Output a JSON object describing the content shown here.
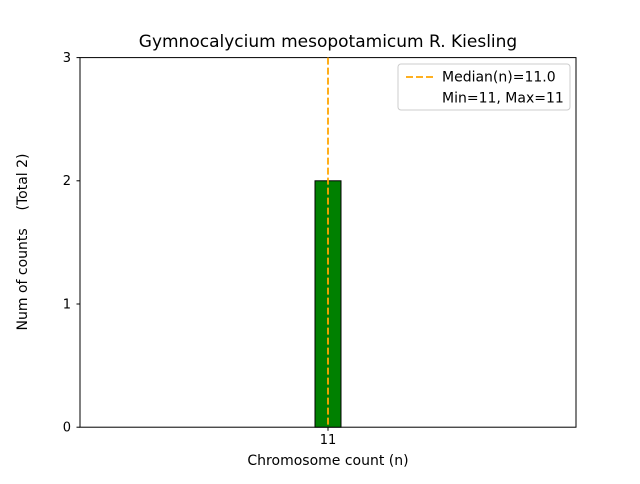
{
  "chart_data": {
    "type": "bar",
    "title": "Gymnocalycium mesopotamicum R. Kiesling",
    "xlabel": "Chromosome count (n)",
    "ylabel": "Num of counts    (Total 2)",
    "categories": [
      "11"
    ],
    "values": [
      2
    ],
    "ylim": [
      0,
      3
    ],
    "yticks": [
      "0",
      "1",
      "2",
      "3"
    ],
    "ytick_values": [
      0,
      1,
      2,
      3
    ],
    "bar_color": "#008000",
    "bar_edge_color": "#000000",
    "median_line": {
      "value": 11,
      "color": "#FFA500",
      "style": "dashed"
    },
    "legend": {
      "entries": [
        "Median(n)=11.0",
        "Min=11, Max=11"
      ],
      "position": "upper right",
      "border_color": "#cccccc"
    },
    "grid": false,
    "total_counts": 2
  }
}
